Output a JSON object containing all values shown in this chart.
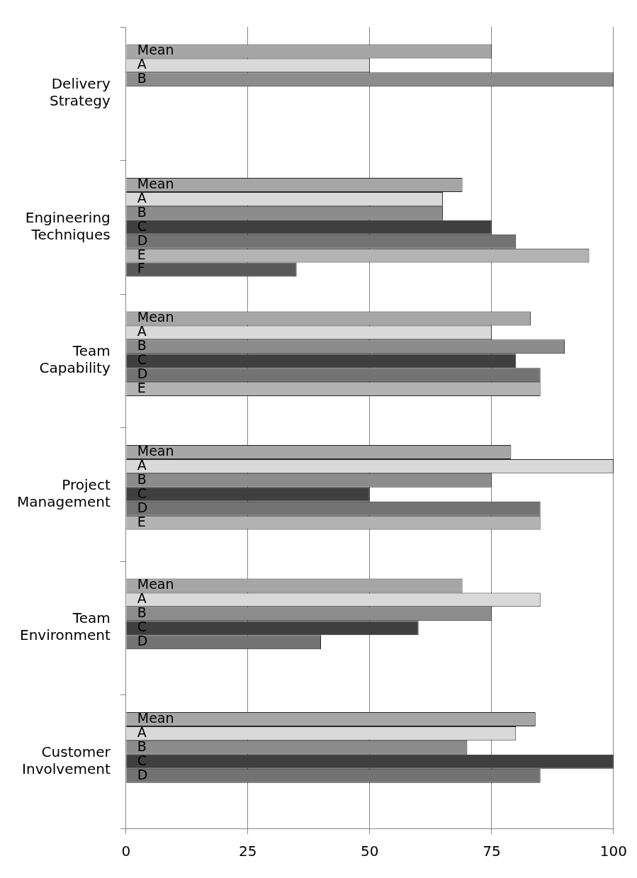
{
  "chart_data": {
    "type": "bar",
    "orientation": "horizontal",
    "categories": [
      "Delivery Strategy",
      "Engineering Techniques",
      "Team Capability",
      "Project Management",
      "Team Environment",
      "Customer Involvement"
    ],
    "series": [
      {
        "name": "Mean",
        "color": "#a6a6a6",
        "values": [
          75,
          69,
          83,
          79,
          69,
          84
        ]
      },
      {
        "name": "A",
        "color": "#d9d9d9",
        "values": [
          50,
          65,
          75,
          100,
          85,
          80
        ]
      },
      {
        "name": "B",
        "color": "#8c8c8c",
        "values": [
          100,
          65,
          90,
          75,
          75,
          70
        ]
      },
      {
        "name": "C",
        "color": "#3f3f3f",
        "values": [
          null,
          75,
          80,
          50,
          60,
          100
        ]
      },
      {
        "name": "D",
        "color": "#737373",
        "values": [
          null,
          80,
          85,
          85,
          40,
          85
        ]
      },
      {
        "name": "E",
        "color": "#b3b3b3",
        "values": [
          null,
          95,
          85,
          85,
          null,
          null
        ]
      },
      {
        "name": "F",
        "color": "#595959",
        "values": [
          null,
          35,
          null,
          null,
          null,
          null
        ]
      }
    ],
    "xlim": [
      0,
      100
    ],
    "xticks": [
      0,
      25,
      50,
      75,
      100
    ],
    "grid": "x"
  }
}
